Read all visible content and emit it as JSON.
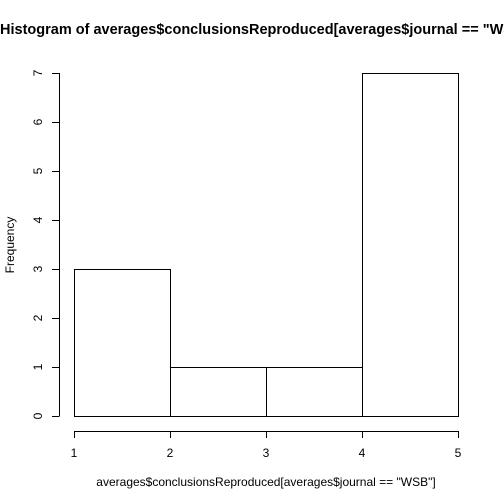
{
  "chart_data": {
    "type": "bar",
    "title": "Histogram of averages$conclusionsReproduced[averages$journal == \"WSB\"]",
    "xlabel": "averages$conclusionsReproduced[averages$journal == \"WSB\"]",
    "ylabel": "Frequency",
    "bins": [
      {
        "from": 1,
        "to": 2,
        "count": 3
      },
      {
        "from": 2,
        "to": 3,
        "count": 1
      },
      {
        "from": 3,
        "to": 4,
        "count": 1
      },
      {
        "from": 4,
        "to": 5,
        "count": 7
      }
    ],
    "xlim": [
      1,
      5
    ],
    "ylim": [
      0,
      7
    ],
    "xticks": [
      1,
      2,
      3,
      4,
      5
    ],
    "yticks": [
      0,
      1,
      2,
      3,
      4,
      5,
      6,
      7
    ],
    "grid": false,
    "legend": "none"
  }
}
